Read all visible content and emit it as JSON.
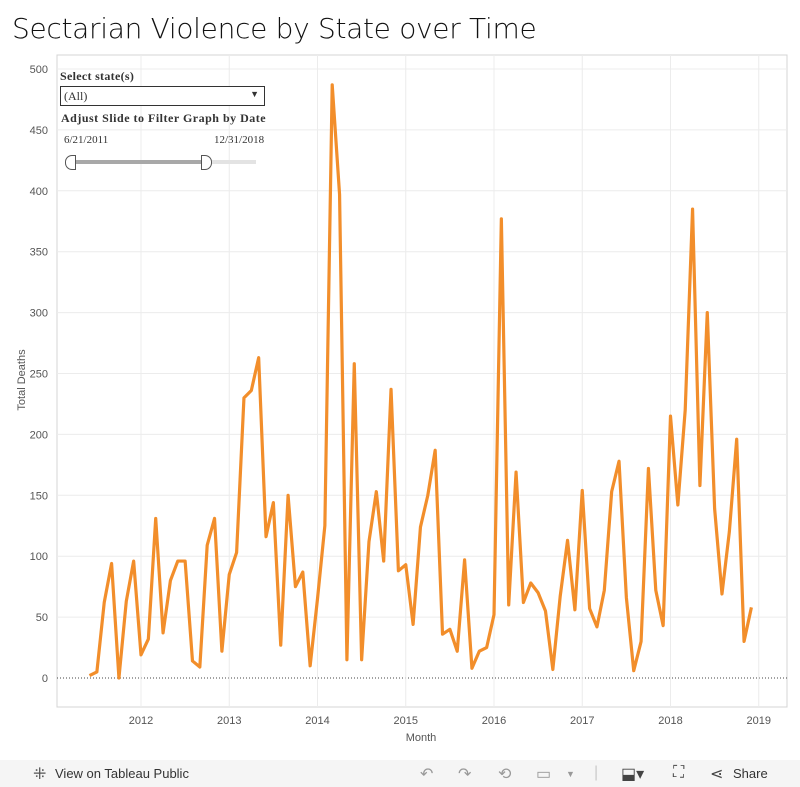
{
  "title": "Sectarian Violence by State over Time",
  "filters": {
    "state_label": "Select state(s)",
    "state_value": "(All)",
    "date_label": "Adjust Slide to Filter Graph by Date",
    "date_start": "6/21/2011",
    "date_end": "12/31/2018"
  },
  "toolbar": {
    "view_label": "View on Tableau Public",
    "share_label": "Share",
    "icons": [
      "tableau-icon",
      "undo-icon",
      "redo-icon",
      "revert-icon",
      "refresh-icon",
      "download-icon",
      "fullscreen-icon",
      "share-icon"
    ]
  },
  "chart_data": {
    "type": "line",
    "xlabel": "Month",
    "ylabel": "Total Deaths",
    "ylim": [
      -25,
      510
    ],
    "yticks": [
      0,
      50,
      100,
      150,
      200,
      250,
      300,
      350,
      400,
      450,
      500
    ],
    "xticks": [
      "2012",
      "2013",
      "2014",
      "2015",
      "2016",
      "2017",
      "2018",
      "2019"
    ],
    "grid": true,
    "color": "#f28e2b",
    "x": [
      "2011-06",
      "2011-07",
      "2011-08",
      "2011-09",
      "2011-10",
      "2011-11",
      "2011-12",
      "2012-01",
      "2012-02",
      "2012-03",
      "2012-04",
      "2012-05",
      "2012-06",
      "2012-07",
      "2012-08",
      "2012-09",
      "2012-10",
      "2012-11",
      "2012-12",
      "2013-01",
      "2013-02",
      "2013-03",
      "2013-04",
      "2013-05",
      "2013-06",
      "2013-07",
      "2013-08",
      "2013-09",
      "2013-10",
      "2013-11",
      "2013-12",
      "2014-01",
      "2014-02",
      "2014-03",
      "2014-04",
      "2014-05",
      "2014-06",
      "2014-07",
      "2014-08",
      "2014-09",
      "2014-10",
      "2014-11",
      "2014-12",
      "2015-01",
      "2015-02",
      "2015-03",
      "2015-04",
      "2015-05",
      "2015-06",
      "2015-07",
      "2015-08",
      "2015-09",
      "2015-10",
      "2015-11",
      "2015-12",
      "2016-01",
      "2016-02",
      "2016-03",
      "2016-04",
      "2016-05",
      "2016-06",
      "2016-07",
      "2016-08",
      "2016-09",
      "2016-10",
      "2016-11",
      "2016-12",
      "2017-01",
      "2017-02",
      "2017-03",
      "2017-04",
      "2017-05",
      "2017-06",
      "2017-07",
      "2017-08",
      "2017-09",
      "2017-10",
      "2017-11",
      "2017-12",
      "2018-01",
      "2018-02",
      "2018-03",
      "2018-04",
      "2018-05",
      "2018-06",
      "2018-07",
      "2018-08",
      "2018-09",
      "2018-10",
      "2018-11",
      "2018-12"
    ],
    "y": [
      2,
      5,
      62,
      94,
      0,
      63,
      96,
      19,
      32,
      131,
      37,
      80,
      96,
      96,
      14,
      9,
      109,
      131,
      22,
      85,
      103,
      230,
      236,
      263,
      116,
      144,
      27,
      150,
      75,
      87,
      10,
      65,
      125,
      487,
      397,
      15,
      258,
      15,
      112,
      153,
      96,
      237,
      88,
      93,
      44,
      124,
      150,
      187,
      36,
      40,
      22,
      97,
      8,
      22,
      25,
      52,
      377,
      60,
      169,
      62,
      78,
      70,
      55,
      7,
      67,
      113,
      56,
      154,
      57,
      42,
      72,
      153,
      178,
      66,
      6,
      30,
      172,
      72,
      43,
      215,
      142,
      220,
      385,
      158,
      300,
      139,
      69,
      120,
      196,
      30,
      58
    ]
  }
}
